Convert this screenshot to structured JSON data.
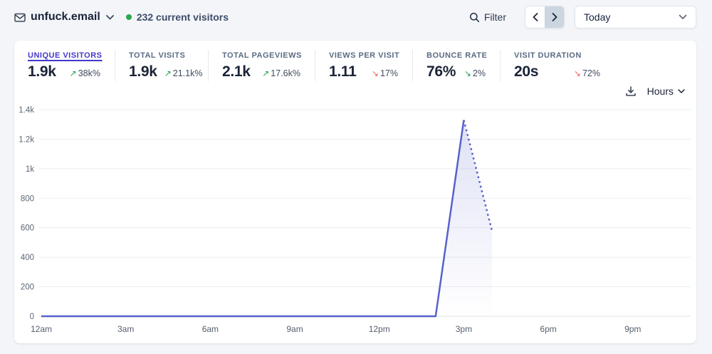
{
  "header": {
    "site": "unfuck.email",
    "current_visitors": "232 current visitors",
    "filter_label": "Filter",
    "period_label": "Today"
  },
  "stats": [
    {
      "label": "UNIQUE VISITORS",
      "value": "1.9k",
      "arrow": "↗",
      "change": "38k%",
      "arrow_color": "#1ea44c",
      "selected": true
    },
    {
      "label": "TOTAL VISITS",
      "value": "1.9k",
      "arrow": "↗",
      "change": "21.1k%",
      "arrow_color": "#1ea44c"
    },
    {
      "label": "TOTAL PAGEVIEWS",
      "value": "2.1k",
      "arrow": "↗",
      "change": "17.6k%",
      "arrow_color": "#1ea44c"
    },
    {
      "label": "VIEWS PER VISIT",
      "value": "1.11",
      "arrow": "↘",
      "change": "17%",
      "arrow_color": "#f25f5f"
    },
    {
      "label": "BOUNCE RATE",
      "value": "76%",
      "arrow": "↘",
      "change": "2%",
      "arrow_color": "#1ea44c"
    },
    {
      "label": "VISIT DURATION",
      "value": "20s",
      "arrow": "↘",
      "change": "72%",
      "arrow_color": "#f25f5f"
    }
  ],
  "interval_label": "Hours",
  "chart_data": {
    "type": "line",
    "series_name": "Unique visitors",
    "ylim": [
      0,
      1400
    ],
    "y_ticks": [
      {
        "v": 0,
        "label": "0"
      },
      {
        "v": 200,
        "label": "200"
      },
      {
        "v": 400,
        "label": "400"
      },
      {
        "v": 600,
        "label": "600"
      },
      {
        "v": 800,
        "label": "800"
      },
      {
        "v": 1000,
        "label": "1k"
      },
      {
        "v": 1200,
        "label": "1.2k"
      },
      {
        "v": 1400,
        "label": "1.4k"
      }
    ],
    "x_ticks": [
      {
        "h": 0,
        "label": "12am"
      },
      {
        "h": 3,
        "label": "3am"
      },
      {
        "h": 6,
        "label": "6am"
      },
      {
        "h": 9,
        "label": "9am"
      },
      {
        "h": 12,
        "label": "12pm"
      },
      {
        "h": 15,
        "label": "3pm"
      },
      {
        "h": 18,
        "label": "6pm"
      },
      {
        "h": 21,
        "label": "9pm"
      }
    ],
    "points": [
      {
        "h": 0,
        "v": 0
      },
      {
        "h": 1,
        "v": 0
      },
      {
        "h": 2,
        "v": 0
      },
      {
        "h": 3,
        "v": 0
      },
      {
        "h": 4,
        "v": 0
      },
      {
        "h": 5,
        "v": 0
      },
      {
        "h": 6,
        "v": 0
      },
      {
        "h": 7,
        "v": 0
      },
      {
        "h": 8,
        "v": 0
      },
      {
        "h": 9,
        "v": 0
      },
      {
        "h": 10,
        "v": 0
      },
      {
        "h": 11,
        "v": 0
      },
      {
        "h": 12,
        "v": 0
      },
      {
        "h": 13,
        "v": 0
      },
      {
        "h": 14,
        "v": 0
      },
      {
        "h": 15,
        "v": 1330
      },
      {
        "h": 16,
        "v": 580
      }
    ],
    "dotted_from_hour": 15,
    "line_color": "#5762c9",
    "fill_top": "rgba(88,100,202,0.20)",
    "fill_bottom": "rgba(88,100,202,0)",
    "grid": true,
    "legend": false
  }
}
